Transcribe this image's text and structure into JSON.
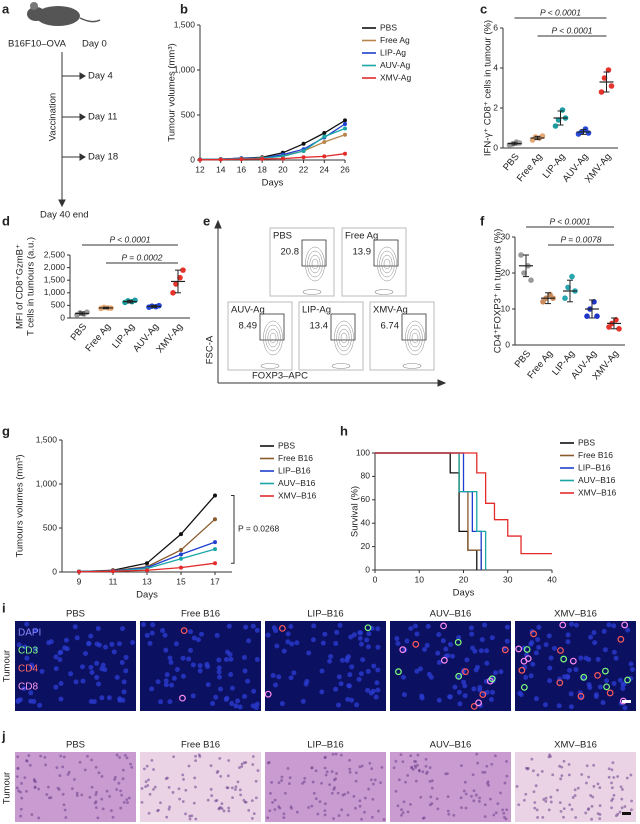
{
  "panel_letters": [
    "a",
    "b",
    "c",
    "d",
    "e",
    "f",
    "g",
    "h",
    "i",
    "j"
  ],
  "schematic": {
    "model": "B16F10–OVA",
    "start": "Day 0",
    "vaccination": "Vaccination",
    "days": [
      "Day 4",
      "Day 11",
      "Day 18"
    ],
    "end": "Day 40 end"
  },
  "flow": {
    "y_axis": "FSC-A",
    "x_axis": "FOXP3–APC",
    "plots": [
      {
        "label": "PBS",
        "value": 20.8
      },
      {
        "label": "Free Ag",
        "value": 13.9
      },
      {
        "label": "AUV-Ag",
        "value": 8.49
      },
      {
        "label": "LIP-Ag",
        "value": 13.4
      },
      {
        "label": "XMV-Ag",
        "value": 6.74
      }
    ]
  },
  "immunofluorescence": {
    "row_label": "Tumour",
    "stains": [
      "DAPI",
      "CD3",
      "CD4",
      "CD8"
    ],
    "columns": [
      "PBS",
      "Free B16",
      "LIP–B16",
      "AUV–B16",
      "XMV–B16"
    ]
  },
  "histology": {
    "row_label": "Tumour",
    "columns": [
      "PBS",
      "Free B16",
      "LIP–B16",
      "AUV–B16",
      "XMV–B16"
    ]
  },
  "chart_data": [
    {
      "type": "line",
      "xlabel": "Days",
      "ylabel": "Tumour volumes (mm³)",
      "x": [
        12,
        14,
        16,
        18,
        20,
        22,
        24,
        26
      ],
      "xlim": [
        12,
        26
      ],
      "xticks": [
        12,
        14,
        16,
        18,
        20,
        22,
        24,
        26
      ],
      "ylim": [
        0,
        1500
      ],
      "yticks": [
        0,
        500,
        {
          "value": 1000,
          "label": "1,000"
        },
        {
          "value": 1500,
          "label": "1,500"
        }
      ],
      "series": [
        {
          "name": "PBS",
          "color": "#111111",
          "values": [
            5,
            10,
            20,
            30,
            80,
            180,
            300,
            440
          ]
        },
        {
          "name": "Free Ag",
          "color": "#b8864b",
          "values": [
            5,
            8,
            15,
            25,
            50,
            100,
            200,
            280
          ]
        },
        {
          "name": "LIP-Ag",
          "color": "#1f3fcf",
          "values": [
            5,
            10,
            20,
            20,
            60,
            120,
            250,
            400
          ]
        },
        {
          "name": "AUV-Ag",
          "color": "#1aa6a6",
          "values": [
            5,
            10,
            15,
            20,
            40,
            100,
            260,
            350
          ]
        },
        {
          "name": "XMV-Ag",
          "color": "#e32b2b",
          "values": [
            3,
            5,
            10,
            12,
            15,
            30,
            40,
            70
          ]
        }
      ]
    },
    {
      "type": "dot",
      "ylabel": "IFN-γ⁺ CD8⁺ cells in tumour (%)",
      "categories": [
        "PBS",
        "Free Ag",
        "LIP-Ag",
        "AUV-Ag",
        "XMV-Ag"
      ],
      "colors": [
        "#9a9a9a",
        "#e6a873",
        "#1a9ca0",
        "#2346d6",
        "#e5322b"
      ],
      "points": [
        [
          0.15,
          0.2,
          0.3,
          0.25
        ],
        [
          0.4,
          0.55,
          0.5,
          0.6
        ],
        [
          1.1,
          1.4,
          1.9,
          1.5
        ],
        [
          0.7,
          0.8,
          0.95,
          0.75
        ],
        [
          2.8,
          3.5,
          3.9,
          3.1
        ]
      ],
      "means": [
        0.22,
        0.5,
        1.5,
        0.8,
        3.3
      ],
      "errors": [
        0.07,
        0.08,
        0.35,
        0.12,
        0.5
      ],
      "ylim": [
        0,
        6
      ],
      "yticks": [
        0,
        2,
        4,
        6
      ],
      "annotations": [
        "P < 0.0001",
        "P < 0.0001"
      ]
    },
    {
      "type": "dot",
      "ylabel": [
        "MFI of CD8⁺GzmB⁺",
        "T cells in tumours (a.u.)"
      ],
      "categories": [
        "PBS",
        "Free Ag",
        "LIP-Ag",
        "AUV-Ag",
        "XMV-Ag"
      ],
      "colors": [
        "#9a9a9a",
        "#e6a873",
        "#1a9ca0",
        "#2346d6",
        "#e5322b"
      ],
      "points": [
        [
          120,
          200,
          160,
          230
        ],
        [
          380,
          420,
          400,
          390
        ],
        [
          620,
          680,
          650,
          700
        ],
        [
          430,
          470,
          450,
          490
        ],
        [
          1000,
          1350,
          1600,
          1900
        ]
      ],
      "means": [
        180,
        400,
        650,
        460,
        1450
      ],
      "errors": [
        60,
        30,
        50,
        40,
        450
      ],
      "ylim": [
        0,
        2500
      ],
      "yticks": [
        0,
        500,
        {
          "value": 1000,
          "label": "1,000"
        },
        {
          "value": 1500,
          "label": "1,500"
        },
        {
          "value": 2000,
          "label": "2,000"
        },
        {
          "value": 2500,
          "label": "2,500"
        }
      ],
      "annotations": [
        "P < 0.0001",
        "P = 0.0002"
      ]
    },
    {
      "type": "dot",
      "ylabel": "CD4⁺FOXP3⁺ in tumours (%)",
      "categories": [
        "PBS",
        "Free Ag",
        "LIP-Ag",
        "AUV-Ag",
        "XMV-Ag"
      ],
      "colors": [
        "#9a9a9a",
        "#c88a5a",
        "#29a6b0",
        "#1e35c8",
        "#e5322b"
      ],
      "points": [
        [
          25,
          20,
          22,
          18
        ],
        [
          12,
          13,
          14,
          13
        ],
        [
          13,
          16,
          19,
          15
        ],
        [
          8,
          10,
          12,
          8
        ],
        [
          5,
          6,
          7,
          4.5
        ]
      ],
      "means": [
        22,
        13,
        15,
        10,
        6
      ],
      "errors": [
        3,
        1.5,
        3,
        2.5,
        1.5
      ],
      "ylim": [
        0,
        30
      ],
      "yticks": [
        0,
        10,
        20,
        30
      ],
      "annotations": [
        "P < 0.0001",
        "P = 0.0078"
      ]
    },
    {
      "type": "line",
      "xlabel": "Days",
      "ylabel": "Tumours volumes (mm³)",
      "x": [
        9,
        11,
        13,
        15,
        17
      ],
      "xlim": [
        8,
        18
      ],
      "xticks": [
        9,
        11,
        13,
        15,
        17
      ],
      "ylim": [
        0,
        1500
      ],
      "yticks": [
        0,
        500,
        {
          "value": 1000,
          "label": "1,000"
        },
        {
          "value": 1500,
          "label": "1,500"
        }
      ],
      "annotations": [
        "P = 0.0268"
      ],
      "series": [
        {
          "name": "PBS",
          "color": "#111111",
          "values": [
            5,
            20,
            100,
            430,
            870
          ]
        },
        {
          "name": "Free B16",
          "color": "#8b5a2b",
          "values": [
            5,
            15,
            60,
            250,
            600
          ]
        },
        {
          "name": "LIP–B16",
          "color": "#1f3fcf",
          "values": [
            5,
            12,
            50,
            200,
            340
          ]
        },
        {
          "name": "AUV–B16",
          "color": "#1aa6a6",
          "values": [
            5,
            10,
            40,
            150,
            260
          ]
        },
        {
          "name": "XMV–B16",
          "color": "#e32b2b",
          "values": [
            3,
            8,
            20,
            50,
            100
          ]
        }
      ]
    },
    {
      "type": "survival",
      "xlabel": "Days",
      "ylabel": "Survival (%)",
      "xlim": [
        0,
        40
      ],
      "xticks": [
        0,
        10,
        20,
        30,
        40
      ],
      "ylim": [
        0,
        100
      ],
      "yticks": [
        0,
        20,
        40,
        60,
        80,
        100
      ],
      "series": [
        {
          "name": "PBS",
          "color": "#111111",
          "x": [
            0,
            17,
            17,
            19,
            19,
            21,
            21,
            23,
            23
          ],
          "values": [
            100,
            100,
            83,
            83,
            33,
            33,
            17,
            17,
            0
          ]
        },
        {
          "name": "Free B16",
          "color": "#8b5a2b",
          "x": [
            0,
            19,
            19,
            21,
            21,
            24,
            24
          ],
          "values": [
            100,
            100,
            67,
            67,
            17,
            17,
            0
          ]
        },
        {
          "name": "LIP–B16",
          "color": "#1f3fcf",
          "x": [
            0,
            20,
            20,
            22,
            22,
            24,
            24
          ],
          "values": [
            100,
            100,
            67,
            67,
            33,
            33,
            0
          ]
        },
        {
          "name": "AUV–B16",
          "color": "#1aa6a6",
          "x": [
            0,
            19,
            19,
            23,
            23,
            25,
            25
          ],
          "values": [
            100,
            100,
            67,
            67,
            33,
            33,
            0
          ]
        },
        {
          "name": "XMV–B16",
          "color": "#e32b2b",
          "x": [
            0,
            23,
            23,
            25,
            25,
            27,
            27,
            30,
            30,
            33,
            33,
            40
          ],
          "values": [
            100,
            100,
            83,
            83,
            57,
            57,
            43,
            43,
            29,
            29,
            14,
            14
          ]
        }
      ]
    }
  ]
}
